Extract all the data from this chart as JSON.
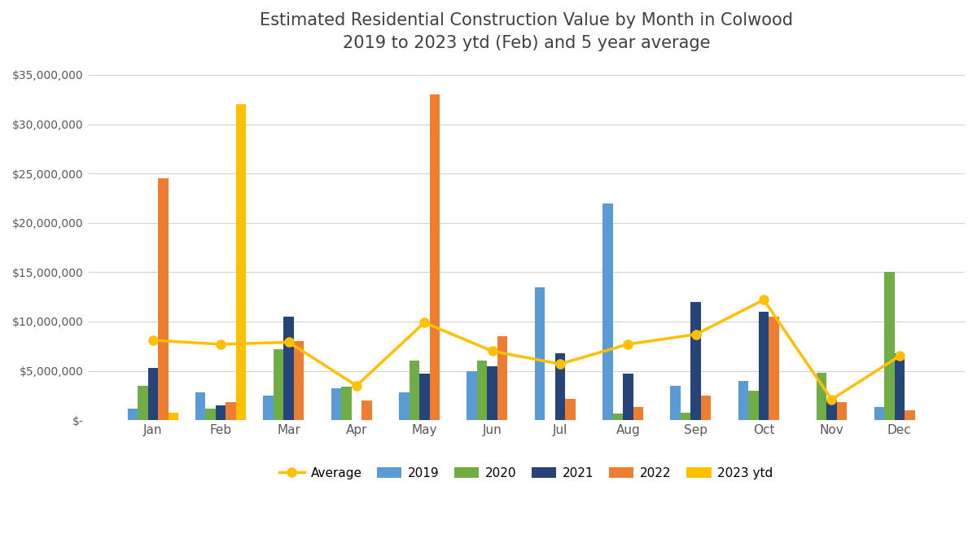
{
  "title": "Estimated Residential Construction Value by Month in Colwood\n2019 to 2023 ytd (Feb) and 5 year average",
  "months": [
    "Jan",
    "Feb",
    "Mar",
    "Apr",
    "May",
    "Jun",
    "Jul",
    "Aug",
    "Sep",
    "Oct",
    "Nov",
    "Dec"
  ],
  "series": {
    "2019": [
      1200000,
      2800000,
      2500000,
      3200000,
      2800000,
      5000000,
      13500000,
      22000000,
      3500000,
      4000000,
      0,
      1300000
    ],
    "2020": [
      3500000,
      1200000,
      7200000,
      3400000,
      6000000,
      6000000,
      0,
      700000,
      800000,
      3000000,
      4800000,
      15000000
    ],
    "2021": [
      5300000,
      1500000,
      10500000,
      0,
      4700000,
      5500000,
      6800000,
      4700000,
      12000000,
      11000000,
      2000000,
      6800000
    ],
    "2022": [
      24500000,
      1800000,
      8000000,
      2000000,
      33000000,
      8500000,
      2200000,
      1300000,
      2500000,
      10500000,
      1800000,
      1000000
    ],
    "2023 ytd": [
      800000,
      32000000,
      0,
      0,
      0,
      0,
      0,
      0,
      0,
      0,
      0,
      0
    ]
  },
  "average": [
    8100000,
    7700000,
    7900000,
    3500000,
    9900000,
    7000000,
    5700000,
    7700000,
    8700000,
    12200000,
    2100000,
    6500000
  ],
  "series_colors": {
    "2019": "#5B9BD5",
    "2020": "#70AD47",
    "2021": "#264478",
    "2022": "#ED7D31",
    "2023 ytd": "#FFC000"
  },
  "avg_line_color": "#FFC000",
  "avg_marker_color": "#FFC000",
  "ylim": [
    0,
    36000000
  ],
  "yticks": [
    0,
    5000000,
    10000000,
    15000000,
    20000000,
    25000000,
    30000000,
    35000000
  ],
  "background_color": "#FFFFFF",
  "grid_color": "#D3D3D3",
  "title_fontsize": 15,
  "bar_width": 0.15,
  "series_order": [
    "2019",
    "2020",
    "2021",
    "2022",
    "2023 ytd"
  ]
}
